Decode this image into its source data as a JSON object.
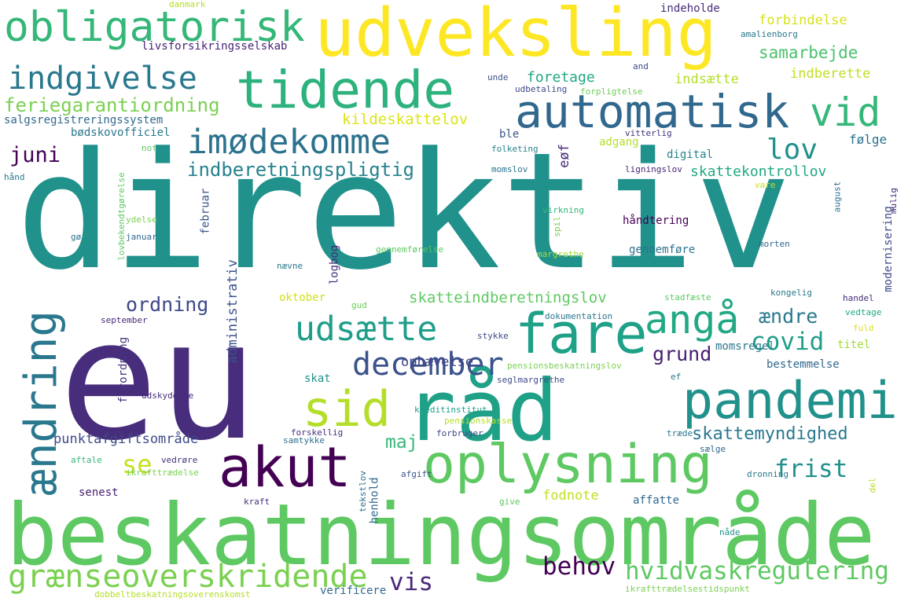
{
  "words": [
    {
      "text": "direktiv",
      "color": "#21918c"
    },
    {
      "text": "eu",
      "color": "#472d7b"
    },
    {
      "text": "beskatningsområde",
      "color": "#5ec962"
    },
    {
      "text": "udveksling",
      "color": "#fde725"
    },
    {
      "text": "obligatorisk",
      "color": "#35b779"
    },
    {
      "text": "tidende",
      "color": "#2db27d"
    },
    {
      "text": "automatisk",
      "color": "#31688e"
    },
    {
      "text": "råd",
      "color": "#1fa187"
    },
    {
      "text": "pandemi",
      "color": "#21918c"
    },
    {
      "text": "oplysning",
      "color": "#5ec962"
    },
    {
      "text": "akut",
      "color": "#440154"
    },
    {
      "text": "sid",
      "color": "#b5de2b"
    },
    {
      "text": "fare",
      "color": "#1fa187"
    },
    {
      "text": "ændring",
      "color": "#2a788e"
    },
    {
      "text": "grænseoverskridende",
      "color": "#7ad151"
    },
    {
      "text": "indgivelse",
      "color": "#2a788e"
    },
    {
      "text": "imødekomme",
      "color": "#2c728e"
    },
    {
      "text": "udsætte",
      "color": "#1f9e89"
    },
    {
      "text": "angå",
      "color": "#22a884"
    },
    {
      "text": "vid",
      "color": "#35b779"
    },
    {
      "text": "december",
      "color": "#3b528b"
    },
    {
      "text": "lov",
      "color": "#21918c"
    },
    {
      "text": "hvidvaskregulering",
      "color": "#5ec962"
    },
    {
      "text": "covid",
      "color": "#1f9e89"
    },
    {
      "text": "behov",
      "color": "#440154"
    },
    {
      "text": "vis",
      "color": "#482878"
    },
    {
      "text": "feriegarantiordning",
      "color": "#7ad151"
    },
    {
      "text": "indberetningspligtig",
      "color": "#26828e"
    },
    {
      "text": "frist",
      "color": "#21918c"
    },
    {
      "text": "ordning",
      "color": "#3e4989"
    },
    {
      "text": "ændre",
      "color": "#2a788e"
    },
    {
      "text": "grund",
      "color": "#481f70"
    },
    {
      "text": "skattemyndighed",
      "color": "#2a788e"
    },
    {
      "text": "juni",
      "color": "#440154"
    },
    {
      "text": "se",
      "color": "#c8e020"
    },
    {
      "text": "maj",
      "color": "#35b779"
    },
    {
      "text": "skatteindberetningslov",
      "color": "#5ec962"
    },
    {
      "text": "kildeskattelov",
      "color": "#dde318"
    },
    {
      "text": "samarbejde",
      "color": "#4ac16d"
    },
    {
      "text": "forbindelse",
      "color": "#d8e219"
    },
    {
      "text": "foretage",
      "color": "#22a884"
    },
    {
      "text": "indsætte",
      "color": "#b5de2b"
    },
    {
      "text": "indberette",
      "color": "#bddf26"
    },
    {
      "text": "skattekontrollov",
      "color": "#22a884"
    },
    {
      "text": "følge",
      "color": "#2c728e"
    },
    {
      "text": "punktafgiftsområde",
      "color": "#3e4989"
    },
    {
      "text": "ophævelse",
      "color": "#414487"
    },
    {
      "text": "administrativ",
      "color": "#3b528b"
    },
    {
      "text": "fodnote",
      "color": "#c2df23"
    },
    {
      "text": "livsforsikringsselskab",
      "color": "#482475"
    },
    {
      "text": "salgsregistreringssystem",
      "color": "#31688e"
    },
    {
      "text": "bødskovofficiel",
      "color": "#2a788e"
    },
    {
      "text": "eøf",
      "color": "#482878"
    },
    {
      "text": "digital",
      "color": "#26828e"
    },
    {
      "text": "indeholde",
      "color": "#472d7b"
    },
    {
      "text": "gennemføre",
      "color": "#2c728e"
    },
    {
      "text": "håndtering",
      "color": "#440154"
    },
    {
      "text": "momsregel",
      "color": "#2a788e"
    },
    {
      "text": "bestemmelse",
      "color": "#31688e"
    },
    {
      "text": "titel",
      "color": "#a0da39"
    },
    {
      "text": "adgang",
      "color": "#b5de2b"
    },
    {
      "text": "ble",
      "color": "#3b528b"
    },
    {
      "text": "februar",
      "color": "#3b528b"
    },
    {
      "text": "logbog",
      "color": "#472d7b"
    },
    {
      "text": "oktober",
      "color": "#d2e21b"
    },
    {
      "text": "senest",
      "color": "#481f70"
    },
    {
      "text": "verificere",
      "color": "#31688e"
    },
    {
      "text": "forordning",
      "color": "#46337e"
    },
    {
      "text": "skat",
      "color": "#21918c"
    },
    {
      "text": "danmark",
      "color": "#b5de2b"
    },
    {
      "text": "amalienborg",
      "color": "#2a788e"
    },
    {
      "text": "and",
      "color": "#3e4989"
    },
    {
      "text": "unde",
      "color": "#3b528b"
    },
    {
      "text": "udbetaling",
      "color": "#3e4989"
    },
    {
      "text": "forpligtelse",
      "color": "#6ece58"
    },
    {
      "text": "folketing",
      "color": "#26828e"
    },
    {
      "text": "momslov",
      "color": "#2c728e"
    },
    {
      "text": "vitterlig",
      "color": "#46337e"
    },
    {
      "text": "ligningslov",
      "color": "#482475"
    },
    {
      "text": "vare",
      "color": "#c8e020"
    },
    {
      "text": "august",
      "color": "#2c728e"
    },
    {
      "text": "mulig",
      "color": "#482878"
    },
    {
      "text": "modernisering",
      "color": "#3e4989"
    },
    {
      "text": "not",
      "color": "#5ec962"
    },
    {
      "text": "hånd",
      "color": "#2a788e"
    },
    {
      "text": "lovbekendtgørelse",
      "color": "#5ec962"
    },
    {
      "text": "ydelse",
      "color": "#7ad151"
    },
    {
      "text": "gø",
      "color": "#2c728e"
    },
    {
      "text": "januar",
      "color": "#31688e"
    },
    {
      "text": "virkning",
      "color": "#35b779"
    },
    {
      "text": "spil",
      "color": "#7ad151"
    },
    {
      "text": "gennemførelse",
      "color": "#5ec962"
    },
    {
      "text": "margrethe",
      "color": "#a0da39"
    },
    {
      "text": "nævne",
      "color": "#2a788e"
    },
    {
      "text": "morten",
      "color": "#31688e"
    },
    {
      "text": "gud",
      "color": "#6ece58"
    },
    {
      "text": "stadfæste",
      "color": "#5ec962"
    },
    {
      "text": "kongelig",
      "color": "#2a788e"
    },
    {
      "text": "handel",
      "color": "#472d7b"
    },
    {
      "text": "september",
      "color": "#482878"
    },
    {
      "text": "dokumentation",
      "color": "#2a788e"
    },
    {
      "text": "stykke",
      "color": "#3e4989"
    },
    {
      "text": "vedtage",
      "color": "#22a884"
    },
    {
      "text": "fuld",
      "color": "#dde318"
    },
    {
      "text": "pensionsbeskatningslov",
      "color": "#7ad151"
    },
    {
      "text": "seglmargrethe",
      "color": "#3e4989"
    },
    {
      "text": "ef",
      "color": "#2a788e"
    },
    {
      "text": "udskydelse",
      "color": "#472d7b"
    },
    {
      "text": "kreditinstitut",
      "color": "#1f9e89"
    },
    {
      "text": "pensionskasse",
      "color": "#b5de2b"
    },
    {
      "text": "forbruger",
      "color": "#3e4989"
    },
    {
      "text": "samtykke",
      "color": "#2c728e"
    },
    {
      "text": "forskellig",
      "color": "#472d7b"
    },
    {
      "text": "træde",
      "color": "#2a788e"
    },
    {
      "text": "sælge",
      "color": "#31688e"
    },
    {
      "text": "aftale",
      "color": "#35b779"
    },
    {
      "text": "vedrøre",
      "color": "#46337e"
    },
    {
      "text": "ikrafttrædelse",
      "color": "#7ad151"
    },
    {
      "text": "tekstlov",
      "color": "#2c728e"
    },
    {
      "text": "henhold",
      "color": "#31688e"
    },
    {
      "text": "afgift",
      "color": "#3b528b"
    },
    {
      "text": "dronning",
      "color": "#2a788e"
    },
    {
      "text": "del",
      "color": "#b5de2b"
    },
    {
      "text": "kraft",
      "color": "#472d7b"
    },
    {
      "text": "give",
      "color": "#5ec962"
    },
    {
      "text": "affatte",
      "color": "#31688e"
    },
    {
      "text": "nåde",
      "color": "#21918c"
    },
    {
      "text": "dobbeltbeskatningsoverenskomst",
      "color": "#b5de2b"
    },
    {
      "text": "ikrafttrædelsestidspunkt",
      "color": "#7ad151"
    }
  ]
}
